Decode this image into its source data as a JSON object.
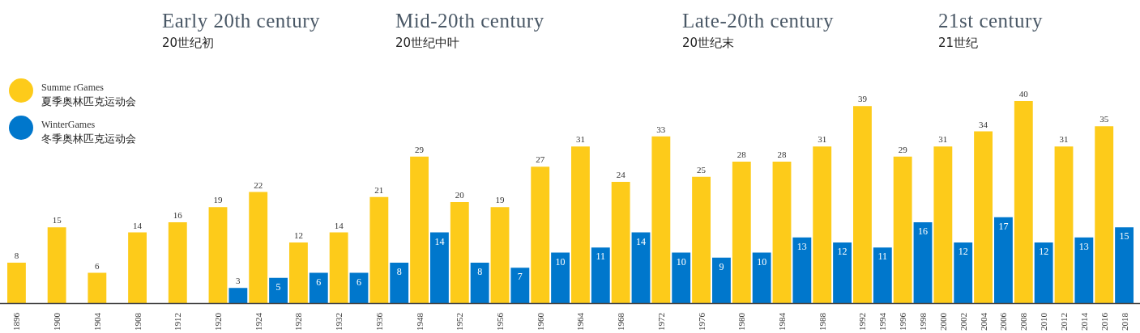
{
  "chart_data": {
    "type": "bar",
    "annotations": [
      "Early 20th century\n20世纪初",
      "Mid-20th century\n20世纪中叶",
      "Late-20th century\n20世纪末",
      "21st century\n21世纪"
    ],
    "categories": [
      "1896",
      null,
      "1900",
      null,
      "1904",
      null,
      "1908",
      null,
      "1912",
      null,
      "1920",
      null,
      "1924",
      null,
      "1928",
      null,
      "1932",
      null,
      "1936",
      null,
      "1948",
      null,
      "1952",
      null,
      "1956",
      null,
      "1960",
      null,
      "1964",
      null,
      "1968",
      null,
      "1972",
      null,
      "1976",
      null,
      "1980",
      null,
      "1984",
      null,
      "1988",
      null,
      "1992",
      "1994",
      "1996",
      "1998",
      "2000",
      "2002",
      "2004",
      "2006",
      "2008",
      "2010",
      "2012",
      "2014",
      "2016",
      "2018"
    ],
    "series": [
      {
        "name": "Summe rGames\n夏季奥林匹克运动会",
        "color": "#fdcb1a",
        "values": [
          8,
          null,
          15,
          null,
          6,
          null,
          14,
          null,
          16,
          null,
          19,
          null,
          22,
          null,
          12,
          null,
          14,
          null,
          21,
          null,
          29,
          null,
          20,
          null,
          19,
          null,
          27,
          null,
          31,
          null,
          24,
          null,
          33,
          null,
          25,
          null,
          28,
          null,
          28,
          null,
          31,
          null,
          39,
          null,
          29,
          null,
          31,
          null,
          34,
          null,
          40,
          null,
          31,
          null,
          35,
          null
        ]
      },
      {
        "name": "WinterGames\n冬季奥林匹克运动会",
        "color": "#0077cc",
        "values": [
          null,
          null,
          null,
          null,
          null,
          null,
          null,
          null,
          null,
          null,
          null,
          3,
          null,
          5,
          null,
          6,
          null,
          6,
          null,
          8,
          null,
          14,
          null,
          8,
          null,
          7,
          null,
          10,
          null,
          11,
          null,
          14,
          null,
          10,
          null,
          9,
          null,
          10,
          null,
          13,
          null,
          12,
          null,
          11,
          null,
          16,
          null,
          12,
          null,
          17,
          null,
          12,
          null,
          13,
          null,
          15
        ]
      }
    ],
    "data_labels": true,
    "legend": "top left"
  }
}
